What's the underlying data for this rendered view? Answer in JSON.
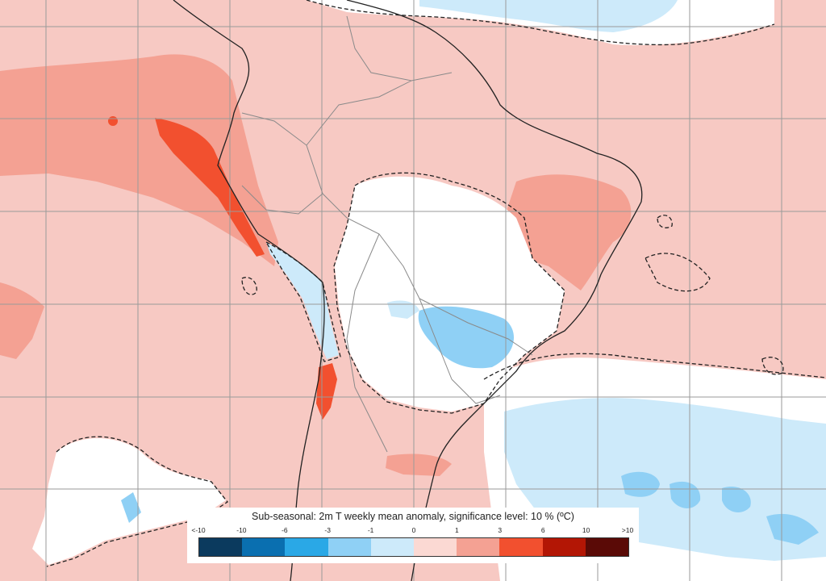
{
  "map": {
    "title": "Sub-seasonal: 2m T weekly mean anomaly, significance level: 10 % (ºC)",
    "region": "South America",
    "colors": {
      "ocean_land_default": "#f7c9c3",
      "near_zero": "#ffffff",
      "boundaries": "#222222",
      "country_borders": "#8a8a8a",
      "grid": "#9a9a9a",
      "significance_contour": "#222222"
    }
  },
  "legend": {
    "title": "Sub-seasonal: 2m T weekly mean anomaly, significance level: 10 % (ºC)",
    "ticks": [
      "<-10",
      "-10",
      "-6",
      "-3",
      "-1",
      "0",
      "1",
      "3",
      "6",
      "10",
      ">10"
    ],
    "colors": [
      "#0b3a5e",
      "#0a6fb0",
      "#2aa8e6",
      "#8fd0f5",
      "#cdeafa",
      "#fbd9d3",
      "#f4a193",
      "#f2502f",
      "#b31605",
      "#5a0a06"
    ]
  }
}
